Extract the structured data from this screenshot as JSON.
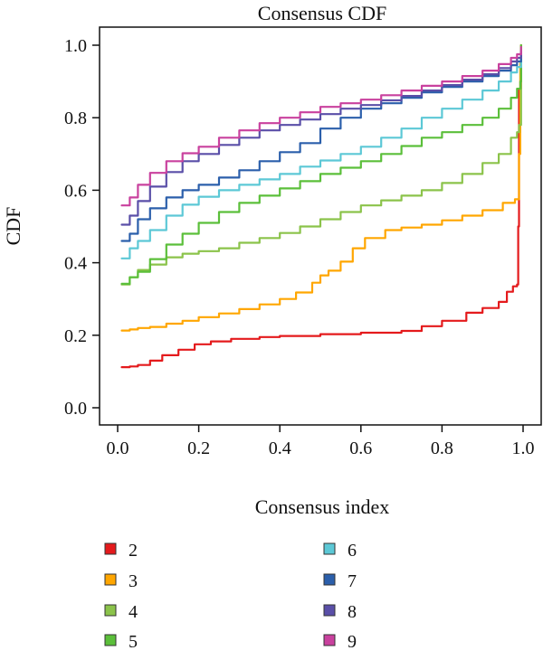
{
  "chart_data": {
    "type": "line",
    "title": "Consensus CDF",
    "xlabel": "Consensus index",
    "ylabel": "CDF",
    "xlim": [
      0,
      1
    ],
    "ylim": [
      0,
      1
    ],
    "x_ticks": [
      "0.0",
      "0.2",
      "0.4",
      "0.6",
      "0.8",
      "1.0"
    ],
    "y_ticks": [
      "0.0",
      "0.2",
      "0.4",
      "0.6",
      "0.8",
      "1.0"
    ],
    "grid": false,
    "legend_position": "bottom",
    "series": [
      {
        "name": "2",
        "color": "#e41a1c",
        "points": [
          [
            0.01,
            0.112
          ],
          [
            0.03,
            0.114
          ],
          [
            0.05,
            0.118
          ],
          [
            0.08,
            0.13
          ],
          [
            0.11,
            0.145
          ],
          [
            0.15,
            0.16
          ],
          [
            0.19,
            0.175
          ],
          [
            0.23,
            0.183
          ],
          [
            0.28,
            0.19
          ],
          [
            0.35,
            0.195
          ],
          [
            0.4,
            0.198
          ],
          [
            0.5,
            0.203
          ],
          [
            0.6,
            0.207
          ],
          [
            0.7,
            0.212
          ],
          [
            0.75,
            0.225
          ],
          [
            0.8,
            0.24
          ],
          [
            0.86,
            0.262
          ],
          [
            0.9,
            0.275
          ],
          [
            0.94,
            0.292
          ],
          [
            0.96,
            0.32
          ],
          [
            0.975,
            0.335
          ],
          [
            0.985,
            0.34
          ],
          [
            0.988,
            0.5
          ],
          [
            0.99,
            0.88
          ],
          [
            0.993,
            0.88
          ],
          [
            0.995,
            1.0
          ]
        ]
      },
      {
        "name": "3",
        "color": "#ffa600",
        "points": [
          [
            0.01,
            0.213
          ],
          [
            0.03,
            0.216
          ],
          [
            0.05,
            0.22
          ],
          [
            0.08,
            0.223
          ],
          [
            0.12,
            0.232
          ],
          [
            0.16,
            0.24
          ],
          [
            0.2,
            0.25
          ],
          [
            0.25,
            0.26
          ],
          [
            0.3,
            0.272
          ],
          [
            0.35,
            0.285
          ],
          [
            0.4,
            0.3
          ],
          [
            0.44,
            0.318
          ],
          [
            0.48,
            0.345
          ],
          [
            0.5,
            0.365
          ],
          [
            0.52,
            0.378
          ],
          [
            0.55,
            0.403
          ],
          [
            0.58,
            0.44
          ],
          [
            0.61,
            0.468
          ],
          [
            0.66,
            0.49
          ],
          [
            0.7,
            0.497
          ],
          [
            0.75,
            0.505
          ],
          [
            0.8,
            0.517
          ],
          [
            0.85,
            0.53
          ],
          [
            0.9,
            0.545
          ],
          [
            0.95,
            0.565
          ],
          [
            0.98,
            0.575
          ],
          [
            0.99,
            0.7
          ],
          [
            0.993,
            0.95
          ],
          [
            0.995,
            1.0
          ]
        ]
      },
      {
        "name": "4",
        "color": "#8bc34a",
        "points": [
          [
            0.01,
            0.34
          ],
          [
            0.03,
            0.36
          ],
          [
            0.05,
            0.38
          ],
          [
            0.08,
            0.395
          ],
          [
            0.12,
            0.415
          ],
          [
            0.16,
            0.425
          ],
          [
            0.2,
            0.432
          ],
          [
            0.25,
            0.44
          ],
          [
            0.3,
            0.455
          ],
          [
            0.35,
            0.468
          ],
          [
            0.4,
            0.482
          ],
          [
            0.45,
            0.5
          ],
          [
            0.5,
            0.52
          ],
          [
            0.55,
            0.54
          ],
          [
            0.6,
            0.558
          ],
          [
            0.65,
            0.572
          ],
          [
            0.7,
            0.585
          ],
          [
            0.75,
            0.6
          ],
          [
            0.8,
            0.62
          ],
          [
            0.85,
            0.645
          ],
          [
            0.9,
            0.675
          ],
          [
            0.94,
            0.7
          ],
          [
            0.97,
            0.745
          ],
          [
            0.985,
            0.76
          ],
          [
            0.99,
            0.78
          ],
          [
            0.995,
            1.0
          ]
        ]
      },
      {
        "name": "5",
        "color": "#5bbf3a",
        "points": [
          [
            0.01,
            0.342
          ],
          [
            0.03,
            0.36
          ],
          [
            0.05,
            0.375
          ],
          [
            0.08,
            0.41
          ],
          [
            0.12,
            0.45
          ],
          [
            0.16,
            0.48
          ],
          [
            0.2,
            0.51
          ],
          [
            0.25,
            0.54
          ],
          [
            0.3,
            0.565
          ],
          [
            0.35,
            0.585
          ],
          [
            0.4,
            0.605
          ],
          [
            0.45,
            0.625
          ],
          [
            0.5,
            0.645
          ],
          [
            0.55,
            0.662
          ],
          [
            0.6,
            0.68
          ],
          [
            0.65,
            0.7
          ],
          [
            0.7,
            0.722
          ],
          [
            0.75,
            0.745
          ],
          [
            0.8,
            0.76
          ],
          [
            0.85,
            0.78
          ],
          [
            0.9,
            0.8
          ],
          [
            0.94,
            0.825
          ],
          [
            0.97,
            0.855
          ],
          [
            0.985,
            0.88
          ],
          [
            0.993,
            0.9
          ],
          [
            0.995,
            1.0
          ]
        ]
      },
      {
        "name": "6",
        "color": "#5cc8d6",
        "points": [
          [
            0.01,
            0.412
          ],
          [
            0.03,
            0.44
          ],
          [
            0.05,
            0.46
          ],
          [
            0.08,
            0.49
          ],
          [
            0.12,
            0.53
          ],
          [
            0.16,
            0.56
          ],
          [
            0.2,
            0.582
          ],
          [
            0.25,
            0.6
          ],
          [
            0.3,
            0.615
          ],
          [
            0.35,
            0.63
          ],
          [
            0.4,
            0.645
          ],
          [
            0.45,
            0.665
          ],
          [
            0.5,
            0.682
          ],
          [
            0.55,
            0.7
          ],
          [
            0.6,
            0.72
          ],
          [
            0.65,
            0.745
          ],
          [
            0.7,
            0.77
          ],
          [
            0.75,
            0.8
          ],
          [
            0.8,
            0.825
          ],
          [
            0.85,
            0.85
          ],
          [
            0.9,
            0.875
          ],
          [
            0.94,
            0.9
          ],
          [
            0.97,
            0.925
          ],
          [
            0.985,
            0.94
          ],
          [
            0.995,
            0.96
          ]
        ]
      },
      {
        "name": "7",
        "color": "#2b5fab",
        "points": [
          [
            0.01,
            0.46
          ],
          [
            0.03,
            0.48
          ],
          [
            0.05,
            0.52
          ],
          [
            0.08,
            0.55
          ],
          [
            0.12,
            0.58
          ],
          [
            0.16,
            0.6
          ],
          [
            0.2,
            0.615
          ],
          [
            0.25,
            0.635
          ],
          [
            0.3,
            0.655
          ],
          [
            0.35,
            0.68
          ],
          [
            0.4,
            0.705
          ],
          [
            0.45,
            0.73
          ],
          [
            0.5,
            0.77
          ],
          [
            0.55,
            0.8
          ],
          [
            0.6,
            0.825
          ],
          [
            0.65,
            0.84
          ],
          [
            0.7,
            0.855
          ],
          [
            0.75,
            0.87
          ],
          [
            0.8,
            0.885
          ],
          [
            0.85,
            0.9
          ],
          [
            0.9,
            0.915
          ],
          [
            0.94,
            0.93
          ],
          [
            0.97,
            0.945
          ],
          [
            0.985,
            0.955
          ],
          [
            0.995,
            0.975
          ]
        ]
      },
      {
        "name": "8",
        "color": "#5a4fa8",
        "points": [
          [
            0.01,
            0.505
          ],
          [
            0.03,
            0.53
          ],
          [
            0.05,
            0.57
          ],
          [
            0.08,
            0.61
          ],
          [
            0.12,
            0.65
          ],
          [
            0.16,
            0.68
          ],
          [
            0.2,
            0.7
          ],
          [
            0.25,
            0.725
          ],
          [
            0.3,
            0.745
          ],
          [
            0.35,
            0.765
          ],
          [
            0.4,
            0.78
          ],
          [
            0.45,
            0.795
          ],
          [
            0.5,
            0.81
          ],
          [
            0.55,
            0.825
          ],
          [
            0.6,
            0.835
          ],
          [
            0.65,
            0.848
          ],
          [
            0.7,
            0.86
          ],
          [
            0.75,
            0.875
          ],
          [
            0.8,
            0.89
          ],
          [
            0.85,
            0.905
          ],
          [
            0.9,
            0.92
          ],
          [
            0.94,
            0.937
          ],
          [
            0.97,
            0.955
          ],
          [
            0.985,
            0.965
          ],
          [
            0.995,
            0.985
          ]
        ]
      },
      {
        "name": "9",
        "color": "#c9419e",
        "points": [
          [
            0.01,
            0.558
          ],
          [
            0.03,
            0.58
          ],
          [
            0.05,
            0.615
          ],
          [
            0.08,
            0.648
          ],
          [
            0.12,
            0.68
          ],
          [
            0.16,
            0.702
          ],
          [
            0.2,
            0.72
          ],
          [
            0.25,
            0.745
          ],
          [
            0.3,
            0.765
          ],
          [
            0.35,
            0.785
          ],
          [
            0.4,
            0.8
          ],
          [
            0.45,
            0.815
          ],
          [
            0.5,
            0.83
          ],
          [
            0.55,
            0.84
          ],
          [
            0.6,
            0.85
          ],
          [
            0.65,
            0.862
          ],
          [
            0.7,
            0.875
          ],
          [
            0.75,
            0.888
          ],
          [
            0.8,
            0.9
          ],
          [
            0.85,
            0.915
          ],
          [
            0.9,
            0.93
          ],
          [
            0.94,
            0.948
          ],
          [
            0.97,
            0.965
          ],
          [
            0.985,
            0.975
          ],
          [
            0.995,
            0.995
          ]
        ]
      }
    ]
  }
}
